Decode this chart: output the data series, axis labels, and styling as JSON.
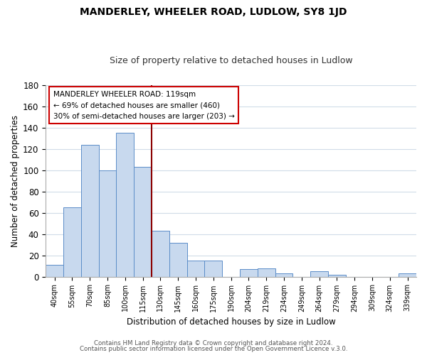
{
  "title": "MANDERLEY, WHEELER ROAD, LUDLOW, SY8 1JD",
  "subtitle": "Size of property relative to detached houses in Ludlow",
  "xlabel": "Distribution of detached houses by size in Ludlow",
  "ylabel": "Number of detached properties",
  "bar_labels": [
    "40sqm",
    "55sqm",
    "70sqm",
    "85sqm",
    "100sqm",
    "115sqm",
    "130sqm",
    "145sqm",
    "160sqm",
    "175sqm",
    "190sqm",
    "204sqm",
    "219sqm",
    "234sqm",
    "249sqm",
    "264sqm",
    "279sqm",
    "294sqm",
    "309sqm",
    "324sqm",
    "339sqm"
  ],
  "bar_heights": [
    11,
    65,
    124,
    100,
    135,
    103,
    43,
    32,
    15,
    15,
    0,
    7,
    8,
    3,
    0,
    5,
    2,
    0,
    0,
    0,
    3
  ],
  "bar_color": "#c8d9ee",
  "bar_edge_color": "#5b8dc8",
  "ylim": [
    0,
    180
  ],
  "yticks": [
    0,
    20,
    40,
    60,
    80,
    100,
    120,
    140,
    160,
    180
  ],
  "vline_x": 5.5,
  "vline_color": "#8b0000",
  "annotation_title": "MANDERLEY WHEELER ROAD: 119sqm",
  "annotation_line1": "← 69% of detached houses are smaller (460)",
  "annotation_line2": "30% of semi-detached houses are larger (203) →",
  "annotation_box_color": "#ffffff",
  "annotation_box_edge": "#cc0000",
  "footer1": "Contains HM Land Registry data © Crown copyright and database right 2024.",
  "footer2": "Contains public sector information licensed under the Open Government Licence v.3.0.",
  "background_color": "#ffffff",
  "grid_color": "#d0dce8"
}
